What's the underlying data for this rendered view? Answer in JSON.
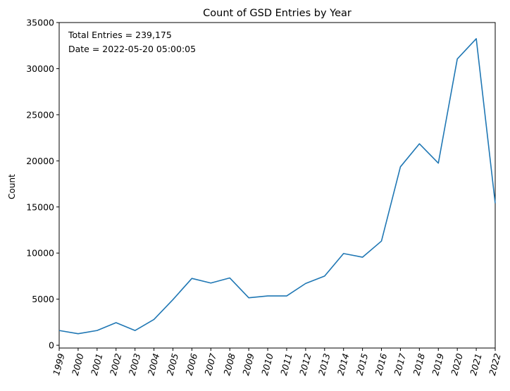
{
  "chart_data": {
    "type": "line",
    "title": "Count of GSD Entries by Year",
    "xlabel": "",
    "ylabel": "Count",
    "annotations": [
      "Total Entries = 239,175",
      "Date = 2022-05-20 05:00:05"
    ],
    "x": [
      1999,
      2000,
      2001,
      2002,
      2003,
      2004,
      2005,
      2006,
      2007,
      2008,
      2009,
      2010,
      2011,
      2012,
      2013,
      2014,
      2015,
      2016,
      2017,
      2018,
      2019,
      2020,
      2021,
      2022
    ],
    "x_tick_labels": [
      "1999",
      "2000",
      "2001",
      "2002",
      "2003",
      "2004",
      "2005",
      "2006",
      "2007",
      "2008",
      "2009",
      "2010",
      "2011",
      "2012",
      "2013",
      "2014",
      "2015",
      "2016",
      "2017",
      "2018",
      "2019",
      "2020",
      "2021",
      "2022"
    ],
    "xlim": [
      1999,
      2022
    ],
    "series": [
      {
        "values": [
          1600,
          1250,
          1600,
          2450,
          1600,
          2800,
          4950,
          7250,
          6750,
          7300,
          5150,
          5350,
          5350,
          6700,
          7500,
          9950,
          9550,
          11300,
          19350,
          21850,
          19750,
          31050,
          33250,
          15400
        ],
        "color": "#1f77b4"
      }
    ],
    "ylim": [
      -300,
      35000
    ],
    "y_ticks": [
      0,
      5000,
      10000,
      15000,
      20000,
      25000,
      30000,
      35000
    ],
    "y_tick_labels": [
      "0",
      "5000",
      "10000",
      "15000",
      "20000",
      "25000",
      "30000",
      "35000"
    ],
    "grid": false,
    "legend": "none"
  }
}
